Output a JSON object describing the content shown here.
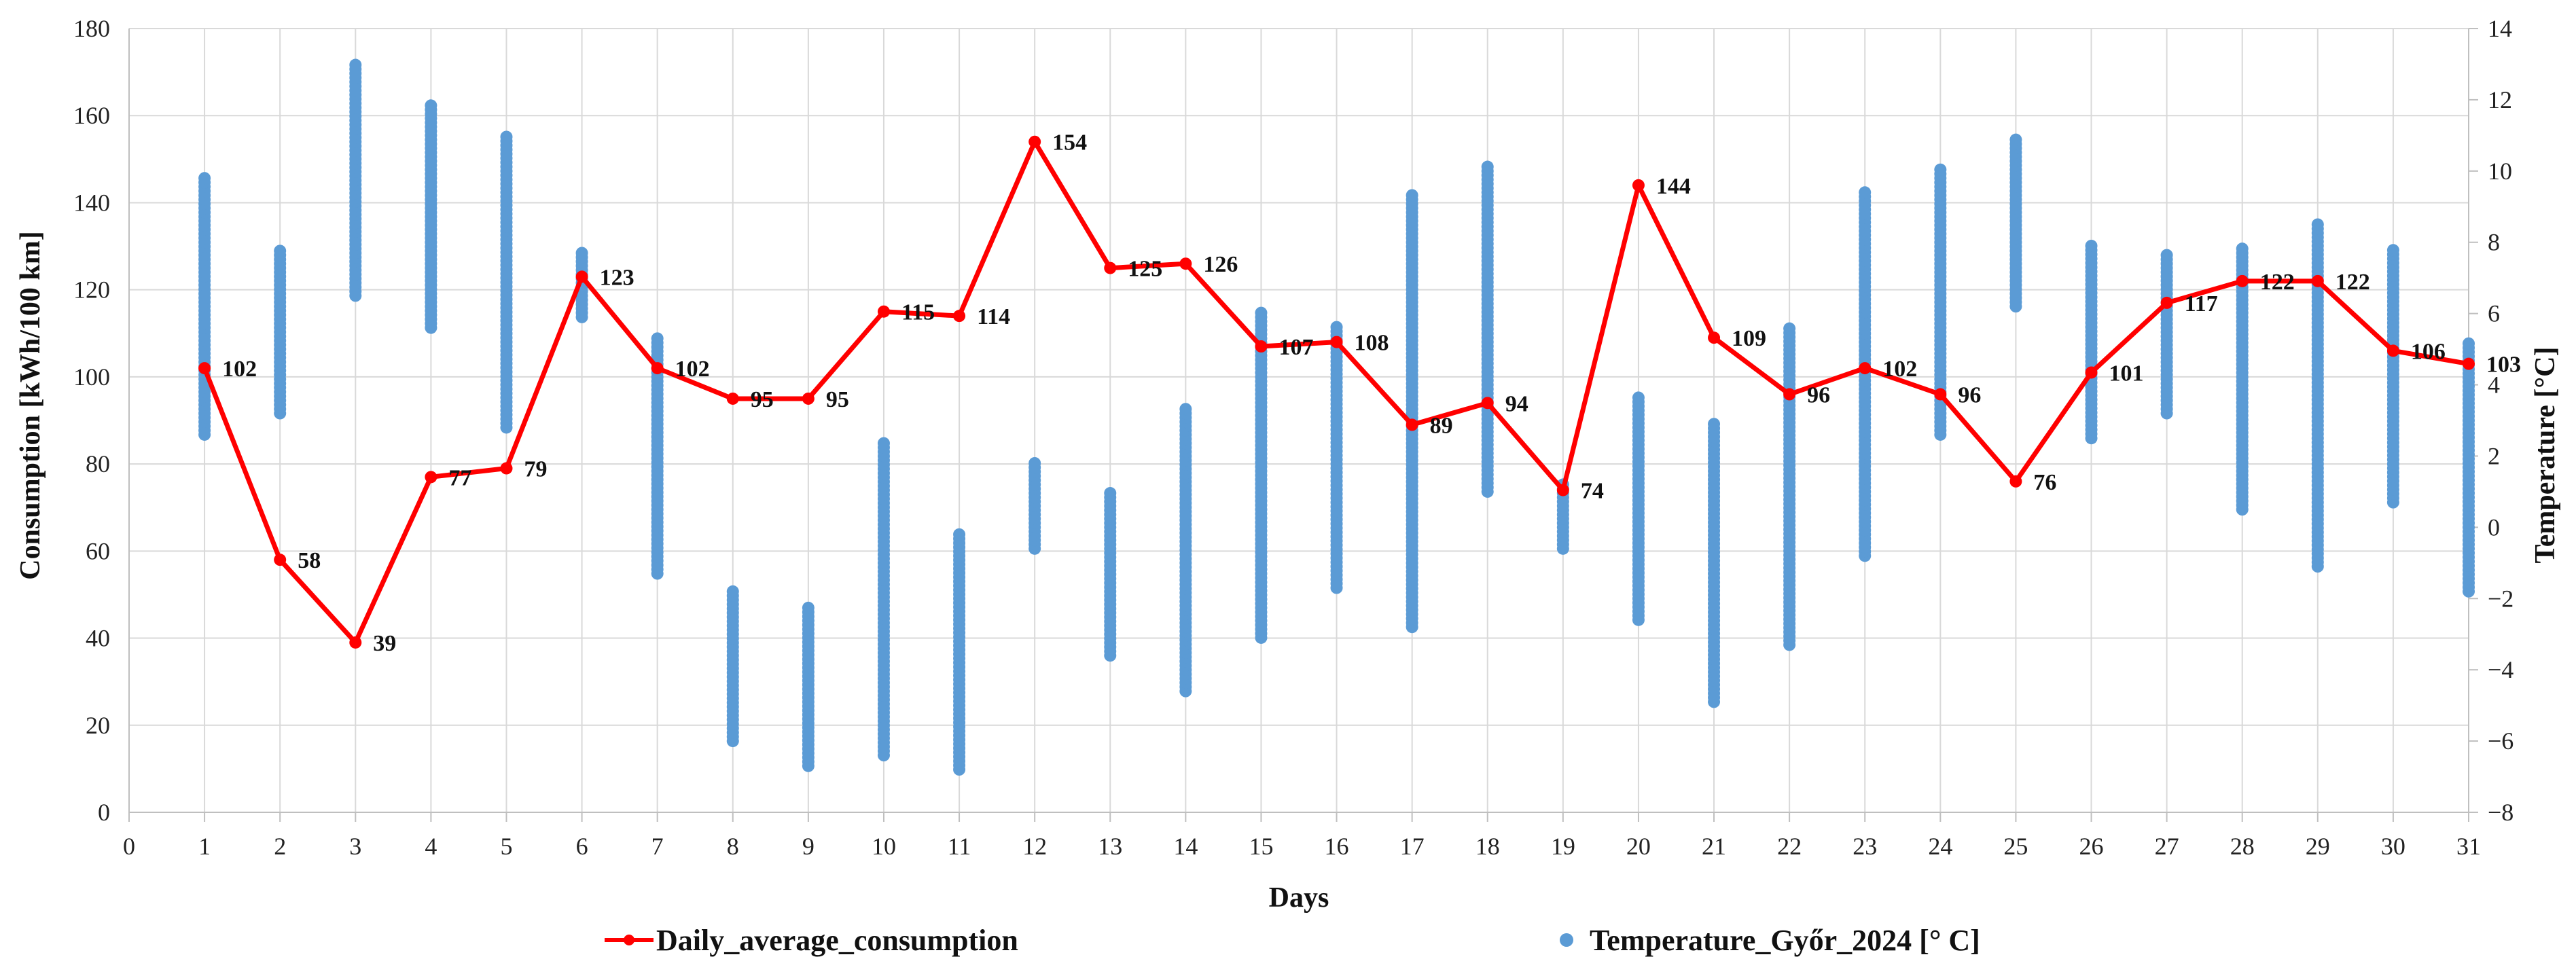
{
  "chart_data": {
    "type": "line+scatter",
    "xlabel": "Days",
    "ylabel_left": "Consumption [kWh/100 km]",
    "ylabel_right": "Temperature [°C]",
    "x_ticks": [
      0,
      1,
      2,
      3,
      4,
      5,
      6,
      7,
      8,
      9,
      10,
      11,
      12,
      13,
      14,
      15,
      16,
      17,
      18,
      19,
      20,
      21,
      22,
      23,
      24,
      25,
      26,
      27,
      28,
      29,
      30,
      31
    ],
    "xlim": [
      0,
      31
    ],
    "ylim_left": [
      0,
      180
    ],
    "y_ticks_left": [
      0,
      20,
      40,
      60,
      80,
      100,
      120,
      140,
      160,
      180
    ],
    "ylim_right": [
      -8,
      14
    ],
    "y_ticks_right": [
      -8,
      -6,
      -4,
      -2,
      0,
      2,
      4,
      6,
      8,
      10,
      12,
      14
    ],
    "series": [
      {
        "name": "Daily_average_consumption",
        "type": "line",
        "color": "#ff0000",
        "axis": "left",
        "x": [
          1,
          2,
          3,
          4,
          5,
          6,
          7,
          8,
          9,
          10,
          11,
          12,
          13,
          14,
          15,
          16,
          17,
          18,
          19,
          20,
          21,
          22,
          23,
          24,
          25,
          26,
          27,
          28,
          29,
          30,
          31
        ],
        "values": [
          102,
          58,
          39,
          77,
          79,
          123,
          102,
          95,
          95,
          115,
          114,
          154,
          125,
          126,
          107,
          108,
          89,
          94,
          74,
          144,
          109,
          96,
          102,
          96,
          76,
          101,
          117,
          122,
          122,
          106,
          103
        ],
        "labels": [
          "102",
          "58",
          "39",
          "77",
          "79",
          "123",
          "102",
          "95",
          "95",
          "115",
          "114",
          "154",
          "125",
          "126",
          "107",
          "108",
          "89",
          "94",
          "74",
          "144",
          "109",
          "96",
          "102",
          "96",
          "76",
          "101",
          "117",
          "122",
          "122",
          "106",
          "103"
        ]
      },
      {
        "name": "Temperature_Győr_2024 [° C]",
        "type": "scatter",
        "color": "#5b9bd5",
        "axis": "right",
        "ranges": [
          {
            "day": 1,
            "min": 2.6,
            "max": 9.9
          },
          {
            "day": 2,
            "min": 3.2,
            "max": 7.8
          },
          {
            "day": 3,
            "min": 6.5,
            "max": 13.0
          },
          {
            "day": 4,
            "min": 5.6,
            "max": 11.9
          },
          {
            "day": 5,
            "min": 2.8,
            "max": 11.0
          },
          {
            "day": 6,
            "min": 5.9,
            "max": 7.8
          },
          {
            "day": 7,
            "min": -1.3,
            "max": 5.4
          },
          {
            "day": 8,
            "min": -6.0,
            "max": -1.8
          },
          {
            "day": 9,
            "min": -6.7,
            "max": -2.2
          },
          {
            "day": 10,
            "min": -6.4,
            "max": 2.4
          },
          {
            "day": 11,
            "min": -6.8,
            "max": -0.2
          },
          {
            "day": 12,
            "min": -0.6,
            "max": 1.9
          },
          {
            "day": 13,
            "min": -3.6,
            "max": 1.0
          },
          {
            "day": 14,
            "min": -4.6,
            "max": 3.4
          },
          {
            "day": 15,
            "min": -3.1,
            "max": 6.1
          },
          {
            "day": 16,
            "min": -1.7,
            "max": 5.7
          },
          {
            "day": 17,
            "min": -2.8,
            "max": 9.4
          },
          {
            "day": 18,
            "min": 1.0,
            "max": 10.2
          },
          {
            "day": 19,
            "min": -0.6,
            "max": 1.3
          },
          {
            "day": 20,
            "min": -2.6,
            "max": 3.7
          },
          {
            "day": 21,
            "min": -4.9,
            "max": 3.0
          },
          {
            "day": 22,
            "min": -3.3,
            "max": 5.6
          },
          {
            "day": 23,
            "min": -0.8,
            "max": 9.4
          },
          {
            "day": 24,
            "min": 2.6,
            "max": 10.1
          },
          {
            "day": 25,
            "min": 6.2,
            "max": 10.9
          },
          {
            "day": 26,
            "min": 2.5,
            "max": 7.9
          },
          {
            "day": 27,
            "min": 3.2,
            "max": 7.7
          },
          {
            "day": 28,
            "min": 0.5,
            "max": 7.9
          },
          {
            "day": 29,
            "min": -1.1,
            "max": 8.5
          },
          {
            "day": 30,
            "min": 0.7,
            "max": 7.8
          },
          {
            "day": 31,
            "min": -1.8,
            "max": 5.2
          }
        ]
      }
    ],
    "legend": [
      {
        "label": "Daily_average_consumption",
        "marker": "line-dot",
        "color": "#ff0000"
      },
      {
        "label": "Temperature_Győr_2024 [° C]",
        "marker": "dot",
        "color": "#5b9bd5"
      }
    ],
    "legend_position": "bottom",
    "grid": true
  }
}
